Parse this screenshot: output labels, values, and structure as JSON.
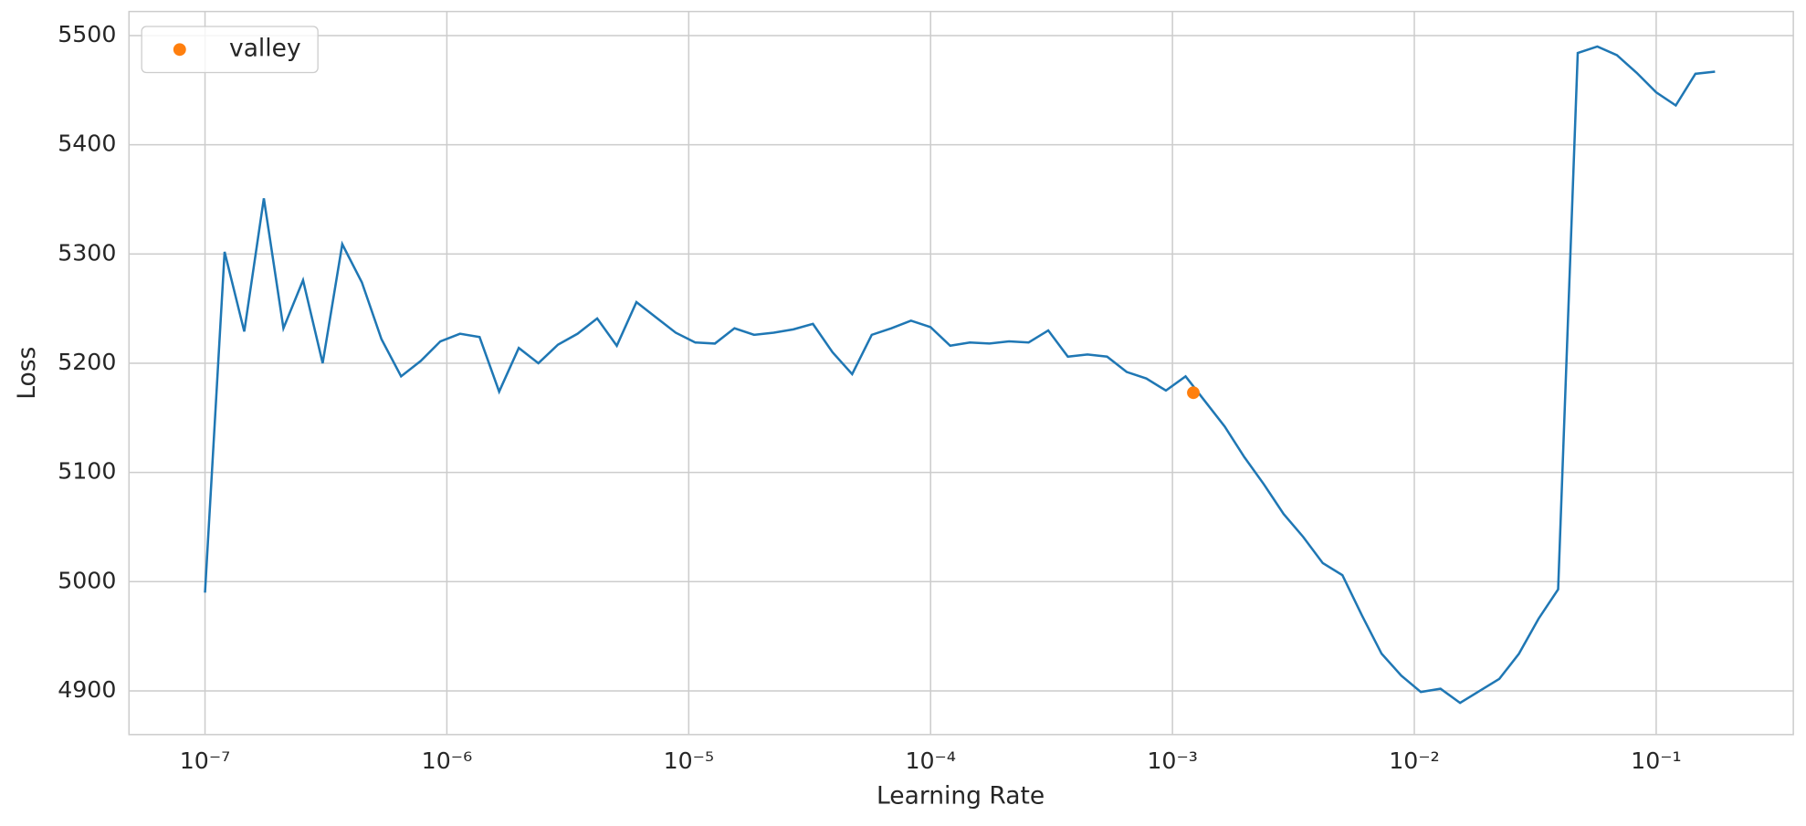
{
  "chart_data": {
    "type": "line",
    "xlabel": "Learning Rate",
    "ylabel": "Loss",
    "xscale": "log",
    "grid": true,
    "legend": "upper left",
    "xlim": [
      4.85e-08,
      0.369
    ],
    "ylim": [
      4860,
      5522
    ],
    "xticks": [
      {
        "value": 1e-07,
        "label": "10⁻⁷"
      },
      {
        "value": 1e-06,
        "label": "10⁻⁶"
      },
      {
        "value": 1e-05,
        "label": "10⁻⁵"
      },
      {
        "value": 0.0001,
        "label": "10⁻⁴"
      },
      {
        "value": 0.001,
        "label": "10⁻³"
      },
      {
        "value": 0.01,
        "label": "10⁻²"
      },
      {
        "value": 0.1,
        "label": "10⁻¹"
      }
    ],
    "yticks": [
      4900,
      5000,
      5100,
      5200,
      5300,
      5400,
      5500
    ],
    "series": [
      {
        "color": "#1f77b4",
        "x": [
          1e-07,
          1.205e-07,
          1.453e-07,
          1.751e-07,
          2.11e-07,
          2.543e-07,
          3.065e-07,
          3.694e-07,
          4.452e-07,
          5.366e-07,
          6.467e-07,
          7.795e-07,
          9.397e-07,
          1.133e-06,
          1.365e-06,
          1.645e-06,
          1.983e-06,
          2.39e-06,
          2.88e-06,
          3.471e-06,
          4.183e-06,
          5.042e-06,
          6.077e-06,
          7.325e-06,
          8.83e-06,
          1.064e-05,
          1.283e-05,
          1.546e-05,
          1.863e-05,
          2.246e-05,
          2.707e-05,
          3.262e-05,
          3.932e-05,
          4.739e-05,
          5.711e-05,
          6.883e-05,
          8.296e-05,
          0.0001,
          0.0001205,
          0.0001453,
          0.0001751,
          0.000211,
          0.0002543,
          0.0003065,
          0.0003694,
          0.0004452,
          0.0005366,
          0.0006467,
          0.0007795,
          0.0009397,
          0.001133,
          0.001365,
          0.001645,
          0.001983,
          0.00239,
          0.00288,
          0.003471,
          0.004183,
          0.005042,
          0.006077,
          0.007325,
          0.00883,
          0.01064,
          0.01283,
          0.01546,
          0.01863,
          0.02246,
          0.02707,
          0.03262,
          0.03932,
          0.04739,
          0.05711,
          0.06883,
          0.08296,
          0.1,
          0.1205,
          0.1453,
          0.1751
        ],
        "values": [
          4990,
          5302,
          5229,
          5351,
          5232,
          5276,
          5200,
          5309,
          5274,
          5222,
          5188,
          5202,
          5220,
          5227,
          5224,
          5174,
          5214,
          5200,
          5217,
          5227,
          5241,
          5216,
          5256,
          5242,
          5228,
          5219,
          5218,
          5232,
          5226,
          5228,
          5231,
          5236,
          5210,
          5190,
          5226,
          5232,
          5239,
          5233,
          5216,
          5219,
          5218,
          5220,
          5219,
          5230,
          5206,
          5208,
          5206,
          5192,
          5186,
          5175,
          5188,
          5165,
          5142,
          5114,
          5089,
          5062,
          5041,
          5017,
          5006,
          4969,
          4934,
          4914,
          4899,
          4902,
          4889,
          4900,
          4911,
          4934,
          4966,
          4993,
          5484,
          5490,
          5482,
          5466,
          5448,
          5436,
          5465,
          5467
        ]
      },
      {
        "name": "valley",
        "type": "scatter",
        "color": "#ff7f0e",
        "x": [
          0.00122
        ],
        "values": [
          5173
        ]
      }
    ]
  }
}
